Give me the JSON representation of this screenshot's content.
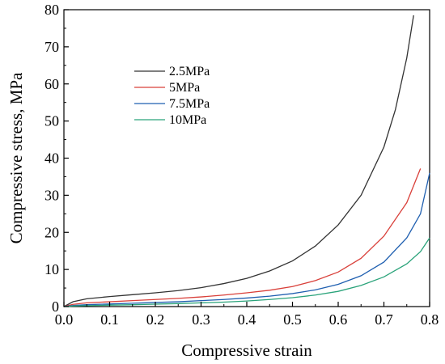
{
  "chart_data": {
    "type": "line",
    "title": "",
    "xlabel": "Compressive strain",
    "ylabel": "Compressive stress, MPa",
    "xlim": [
      0.0,
      0.8
    ],
    "ylim": [
      0,
      80
    ],
    "x_ticks": [
      "0.0",
      "0.1",
      "0.2",
      "0.3",
      "0.4",
      "0.5",
      "0.6",
      "0.7",
      "0.8"
    ],
    "y_ticks": [
      "0",
      "10",
      "20",
      "30",
      "40",
      "50",
      "60",
      "70",
      "80"
    ],
    "grid": false,
    "legend_position": "upper-left",
    "series": [
      {
        "name": "2.5MPa",
        "color": "#333333",
        "x": [
          0.0,
          0.02,
          0.05,
          0.1,
          0.15,
          0.2,
          0.25,
          0.3,
          0.35,
          0.4,
          0.45,
          0.5,
          0.55,
          0.6,
          0.65,
          0.7,
          0.725,
          0.75,
          0.765
        ],
        "y": [
          0.0,
          1.3,
          2.1,
          2.7,
          3.2,
          3.7,
          4.3,
          5.1,
          6.2,
          7.6,
          9.6,
          12.3,
          16.3,
          22.0,
          30.0,
          43.0,
          53.0,
          67.0,
          78.5
        ]
      },
      {
        "name": "5MPa",
        "color": "#d9403a",
        "x": [
          0.0,
          0.02,
          0.05,
          0.1,
          0.15,
          0.2,
          0.25,
          0.3,
          0.35,
          0.4,
          0.45,
          0.5,
          0.55,
          0.6,
          0.65,
          0.7,
          0.75,
          0.78
        ],
        "y": [
          0.0,
          0.6,
          1.0,
          1.3,
          1.6,
          1.9,
          2.2,
          2.6,
          3.1,
          3.7,
          4.4,
          5.4,
          7.0,
          9.3,
          13.0,
          19.0,
          28.0,
          37.2
        ]
      },
      {
        "name": "7.5MPa",
        "color": "#1f5fb0",
        "x": [
          0.0,
          0.02,
          0.05,
          0.1,
          0.15,
          0.2,
          0.25,
          0.3,
          0.35,
          0.4,
          0.45,
          0.5,
          0.55,
          0.6,
          0.65,
          0.7,
          0.75,
          0.78,
          0.8
        ],
        "y": [
          0.0,
          0.3,
          0.5,
          0.7,
          0.9,
          1.1,
          1.3,
          1.6,
          1.9,
          2.3,
          2.8,
          3.5,
          4.5,
          6.0,
          8.3,
          12.0,
          18.5,
          25.0,
          36.0
        ]
      },
      {
        "name": "10MPa",
        "color": "#2aa37a",
        "x": [
          0.0,
          0.02,
          0.05,
          0.1,
          0.15,
          0.2,
          0.25,
          0.3,
          0.35,
          0.4,
          0.45,
          0.5,
          0.55,
          0.6,
          0.65,
          0.7,
          0.75,
          0.78,
          0.8
        ],
        "y": [
          0.0,
          0.15,
          0.25,
          0.4,
          0.5,
          0.65,
          0.8,
          1.0,
          1.2,
          1.5,
          1.9,
          2.4,
          3.1,
          4.1,
          5.7,
          8.0,
          11.5,
          14.8,
          18.5
        ]
      }
    ]
  }
}
